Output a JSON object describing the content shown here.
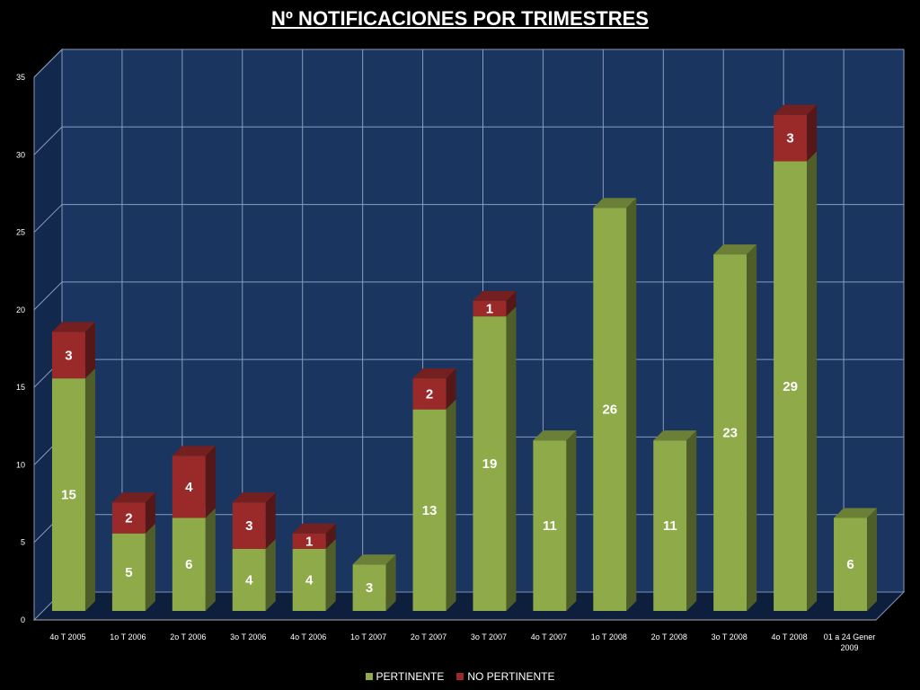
{
  "chart_data": {
    "type": "bar",
    "stacked": true,
    "view": "3d",
    "title": "Nº NOTIFICACIONES POR TRIMESTRES",
    "categories": [
      "4o  T 2005",
      "1o T 2006",
      "2o T 2006",
      "3o T 2006",
      "4o  T 2006",
      "1o T 2007",
      "2o T 2007",
      "3o T 2007",
      "4o  T 2007",
      "1o T 2008",
      "2o T 2008",
      "3o T 2008",
      "4o T 2008",
      "01 a 24 Gener 2009"
    ],
    "series": [
      {
        "name": "PERTINENTE",
        "color": "#8FAA48",
        "values": [
          15,
          5,
          6,
          4,
          4,
          3,
          13,
          19,
          11,
          26,
          11,
          23,
          29,
          6
        ]
      },
      {
        "name": "NO PERTINENTE",
        "color": "#9A2A2A",
        "values": [
          3,
          2,
          4,
          3,
          1,
          0,
          2,
          1,
          0,
          0,
          0,
          0,
          3,
          0
        ]
      }
    ],
    "ylim": [
      0,
      35
    ],
    "yticks": [
      0,
      5,
      10,
      15,
      20,
      25,
      30,
      35
    ],
    "grid": true,
    "legend_position": "bottom",
    "background_color": "#000000",
    "plot_background": "#1A3560"
  }
}
